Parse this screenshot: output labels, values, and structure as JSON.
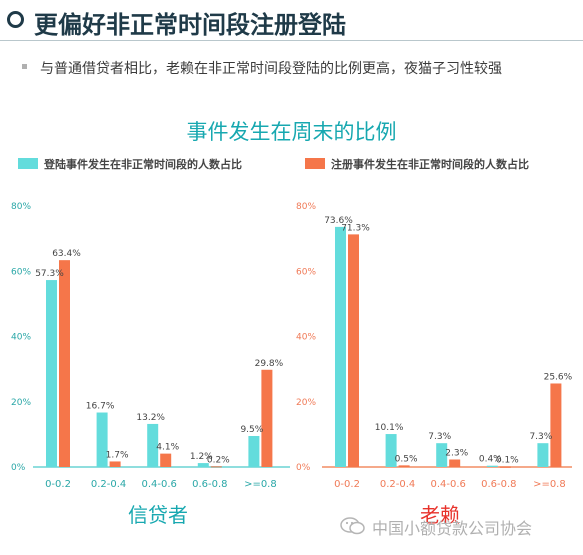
{
  "header": {
    "title": "更偏好非正常时间段注册登陆",
    "subtitle": "与普通借贷者相比，老赖在非正常时间段登陆的比例更高，夜猫子习性较强"
  },
  "colors": {
    "series_a": "#63dcdc",
    "series_b": "#f5764a",
    "title_teal": "#17a8b0",
    "label_red": "#e8322b",
    "header_dark": "#1f3a48"
  },
  "watermark": "中国小额贷款公司协会",
  "chart_data": [
    {
      "type": "bar",
      "title": "事件发生在周末的比例",
      "group_label": "信贷者",
      "categories": [
        "0-0.2",
        "0.2-0.4",
        "0.4-0.6",
        "0.6-0.8",
        ">=0.8"
      ],
      "y_ticks": [
        "0%",
        "20%",
        "40%",
        "60%",
        "80%"
      ],
      "ylim": [
        0,
        80
      ],
      "legend_placement": "top",
      "series": [
        {
          "name": "登陆事件发生在非正常时间段的人数占比",
          "values": [
            57.3,
            16.7,
            13.2,
            1.2,
            9.5
          ],
          "labels": [
            "57.3%",
            "16.7%",
            "13.2%",
            "1.2%",
            "9.5%"
          ]
        },
        {
          "name": "注册事件发生在非正常时间段的人数占比",
          "values": [
            63.4,
            1.7,
            4.1,
            0.2,
            29.8
          ],
          "labels": [
            "63.4%",
            "1.7%",
            "4.1%",
            "0.2%",
            "29.8%"
          ]
        }
      ]
    },
    {
      "type": "bar",
      "group_label": "老赖",
      "categories": [
        "0-0.2",
        "0.2-0.4",
        "0.4-0.6",
        "0.6-0.8",
        ">=0.8"
      ],
      "y_ticks": [
        "0%",
        "20%",
        "40%",
        "60%",
        "80%"
      ],
      "ylim": [
        0,
        80
      ],
      "series": [
        {
          "name": "登陆事件发生在非正常时间段的人数占比",
          "values": [
            73.6,
            10.1,
            7.3,
            0.4,
            7.3
          ],
          "labels": [
            "73.6%",
            "10.1%",
            "7.3%",
            "0.4%",
            "7.3%"
          ]
        },
        {
          "name": "注册事件发生在非正常时间段的人数占比",
          "values": [
            71.3,
            0.5,
            2.3,
            0.1,
            25.6
          ],
          "labels": [
            "71.3%",
            "0.5%",
            "2.3%",
            "0.1%",
            "25.6%"
          ]
        }
      ]
    }
  ]
}
